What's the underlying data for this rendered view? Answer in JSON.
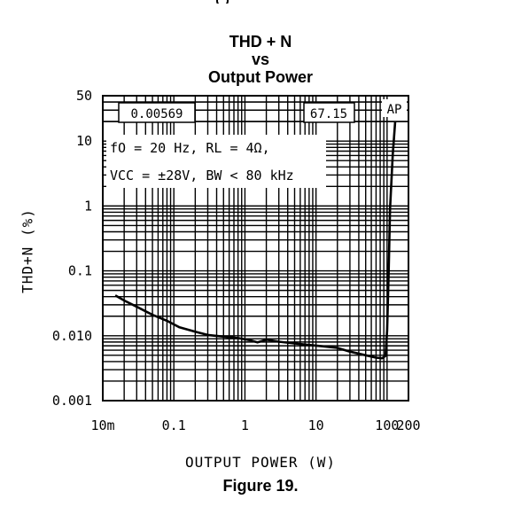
{
  "title_lines": [
    "THD + N",
    "vs",
    "Output Power"
  ],
  "caption": "Figure 19.",
  "chart_data": {
    "type": "line",
    "title": "THD + N vs Output Power",
    "xlabel": "OUTPUT POWER (W)",
    "ylabel": "THD+N (%)",
    "x_scale": "log",
    "y_scale": "log",
    "xlim": [
      0.01,
      200
    ],
    "ylim": [
      0.001,
      50
    ],
    "x_tick_values": [
      0.01,
      0.1,
      1,
      10,
      100,
      200
    ],
    "x_tick_labels": [
      "10m",
      "0.1",
      "1",
      "10",
      "100",
      "200"
    ],
    "y_tick_values": [
      0.001,
      0.01,
      0.1,
      1,
      10,
      50
    ],
    "y_tick_labels": [
      "0.001",
      "0.010",
      "0.1",
      "1",
      "10",
      "50"
    ],
    "grid": true,
    "series": [
      {
        "x": [
          0.015,
          0.02,
          0.03,
          0.05,
          0.08,
          0.12,
          0.2,
          0.3,
          0.5,
          0.8,
          1.2,
          1.5,
          2,
          3,
          5,
          8,
          12,
          20,
          30,
          50,
          70,
          85,
          95,
          100,
          105,
          110,
          120,
          130
        ],
        "y": [
          0.042,
          0.035,
          0.028,
          0.021,
          0.017,
          0.0135,
          0.0115,
          0.0103,
          0.0097,
          0.0092,
          0.0085,
          0.0079,
          0.0087,
          0.0081,
          0.0076,
          0.0072,
          0.0069,
          0.0065,
          0.0057,
          0.005,
          0.0046,
          0.0045,
          0.0049,
          0.012,
          0.09,
          0.9,
          6.0,
          20.0
        ]
      }
    ],
    "annotations": {
      "left_box": "0.00569",
      "right_box": "67.15",
      "corner_label": "AP",
      "conditions_line1": "fO = 20 Hz, RL = 4Ω,",
      "conditions_line2": "VCC = ±28V, BW < 80 kHz"
    }
  }
}
